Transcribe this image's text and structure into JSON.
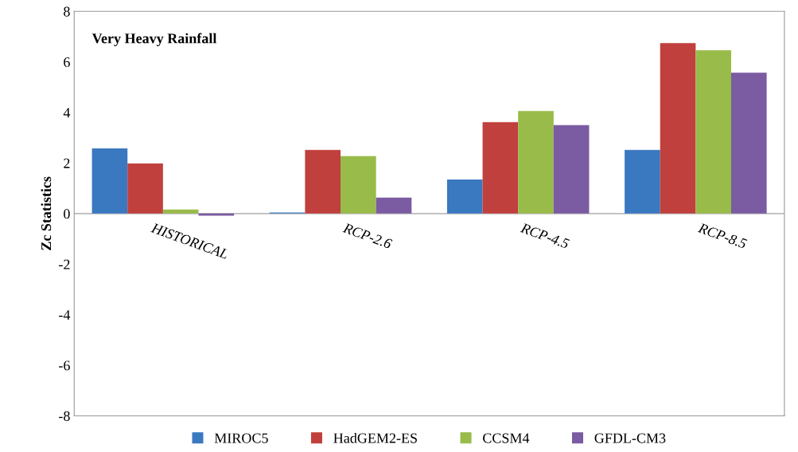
{
  "chart_data": {
    "type": "bar",
    "title": "Very Heavy Rainfall",
    "ylabel": "Zc Statistics",
    "categories": [
      "HISTORICAL",
      "RCP-2.6",
      "RCP-4.5",
      "RCP-8.5"
    ],
    "series": [
      {
        "name": "MIROC5",
        "color": "#3a78c0",
        "values": [
          2.58,
          0.04,
          1.35,
          2.52
        ]
      },
      {
        "name": "HadGEM2-ES",
        "color": "#c0403d",
        "values": [
          1.98,
          2.52,
          3.62,
          6.74
        ]
      },
      {
        "name": "CCSM4",
        "color": "#98bb4a",
        "values": [
          0.16,
          2.27,
          4.06,
          6.46
        ]
      },
      {
        "name": "GFDL-CM3",
        "color": "#7b5ba1",
        "values": [
          -0.08,
          0.63,
          3.5,
          5.57
        ]
      }
    ],
    "ylim": [
      -8,
      8
    ],
    "yticks": [
      -8,
      -6,
      -4,
      -2,
      0,
      2,
      4,
      6,
      8
    ],
    "grid": false,
    "legend": "bottom"
  }
}
